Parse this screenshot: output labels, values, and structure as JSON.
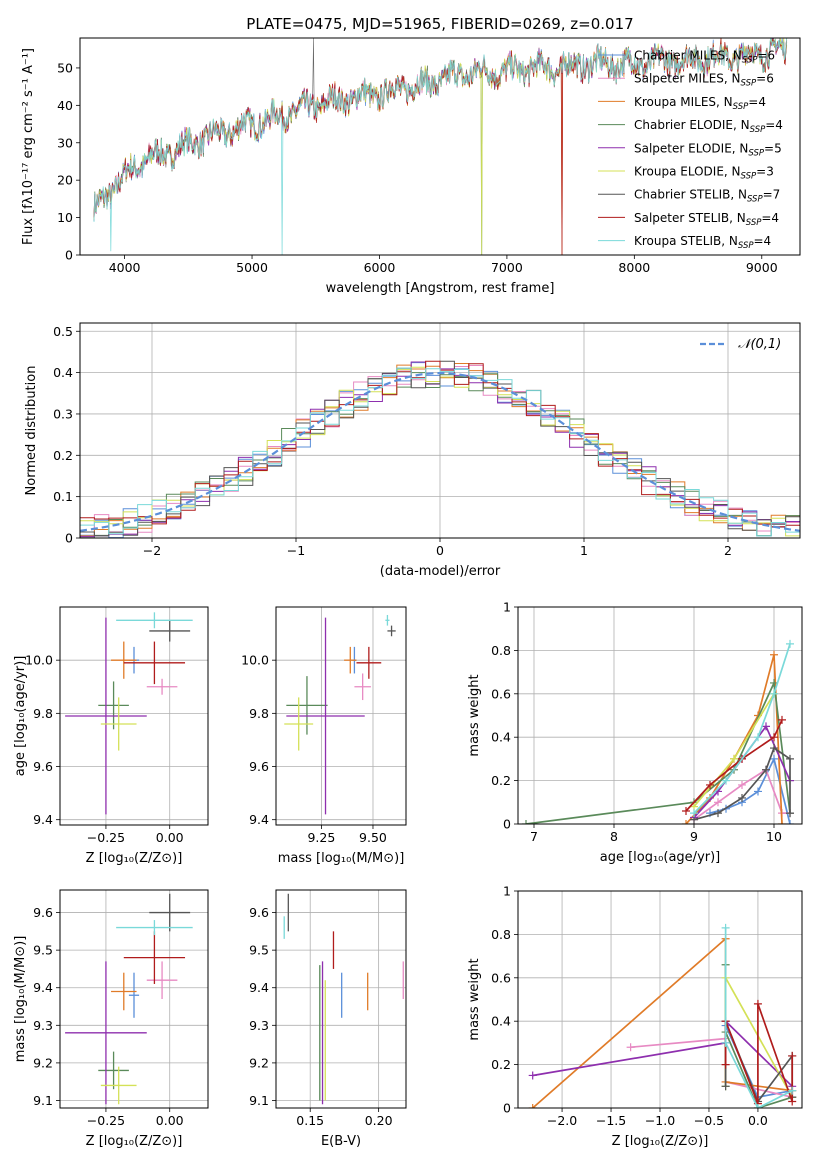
{
  "figure": {
    "title": "PLATE=0475, MJD=51965, FIBERID=0269, z=0.017"
  },
  "models": [
    {
      "name": "Chabrier MILES, N_SSP=6",
      "label_main": "Chabrier MILES, N",
      "label_sub": "SSP",
      "label_tail": "=6",
      "color": "#5b8fd9"
    },
    {
      "name": "Salpeter MILES, N_SSP=6",
      "label_main": "Salpeter MILES, N",
      "label_sub": "SSP",
      "label_tail": "=6",
      "color": "#e78ac3"
    },
    {
      "name": "Kroupa MILES, N_SSP=4",
      "label_main": "Kroupa MILES, N",
      "label_sub": "SSP",
      "label_tail": "=4",
      "color": "#e07b28"
    },
    {
      "name": "Chabrier ELODIE, N_SSP=4",
      "label_main": "Chabrier ELODIE, N",
      "label_sub": "SSP",
      "label_tail": "=4",
      "color": "#5a8a5a"
    },
    {
      "name": "Salpeter ELODIE, N_SSP=5",
      "label_main": "Salpeter ELODIE, N",
      "label_sub": "SSP",
      "label_tail": "=5",
      "color": "#8e2fae"
    },
    {
      "name": "Kroupa ELODIE, N_SSP=3",
      "label_main": "Kroupa ELODIE, N",
      "label_sub": "SSP",
      "label_tail": "=3",
      "color": "#d4e157"
    },
    {
      "name": "Chabrier STELIB, N_SSP=7",
      "label_main": "Chabrier STELIB, N",
      "label_sub": "SSP",
      "label_tail": "=7",
      "color": "#555555"
    },
    {
      "name": "Salpeter STELIB, N_SSP=4",
      "label_main": "Salpeter STELIB, N",
      "label_sub": "SSP",
      "label_tail": "=4",
      "color": "#b01c1c"
    },
    {
      "name": "Kroupa STELIB, N_SSP=4",
      "label_main": "Kroupa STELIB, N",
      "label_sub": "SSP",
      "label_tail": "=4",
      "color": "#7ad9d9"
    }
  ],
  "chart_data": [
    {
      "id": "spectrum",
      "type": "line",
      "xlabel": "wavelength [Angstrom, rest frame]",
      "ylabel": "Flux [fλ10⁻¹⁷ erg cm⁻² s⁻¹ A⁻¹]",
      "xlim": [
        3650,
        9300
      ],
      "ylim": [
        0,
        58
      ],
      "xticks": [
        4000,
        5000,
        6000,
        7000,
        8000,
        9000
      ],
      "yticks": [
        0,
        10,
        20,
        30,
        40,
        50
      ],
      "legend": "top-right",
      "continuum": {
        "x": [
          3750,
          3850,
          3950,
          4050,
          4200,
          4400,
          4600,
          4800,
          5000,
          5200,
          5400,
          5600,
          5800,
          6000,
          6200,
          6400,
          6600,
          6800,
          7000,
          7200,
          7400,
          7600,
          7800,
          8000,
          8200,
          8400,
          8600,
          8800,
          9000,
          9200
        ],
        "y": [
          11,
          16,
          19,
          23,
          26,
          28,
          31,
          33,
          35,
          37,
          39,
          41,
          42,
          43,
          45,
          46,
          48,
          49,
          49,
          50,
          50,
          51,
          51,
          51,
          52,
          52,
          53,
          53,
          54,
          55
        ]
      },
      "dips": [
        {
          "x": 3890,
          "y": 0
        },
        {
          "x": 5235,
          "y": 0
        },
        {
          "x": 6800,
          "y": 0
        },
        {
          "x": 7430,
          "y": 0
        }
      ]
    },
    {
      "id": "residual-histogram",
      "type": "bar",
      "xlabel": "(data-model)/error",
      "ylabel": "Normed distribution",
      "xlim": [
        -2.5,
        2.5
      ],
      "ylim": [
        0,
        0.52
      ],
      "xticks": [
        -2,
        -1,
        0,
        1,
        2
      ],
      "yticks": [
        0.0,
        0.1,
        0.2,
        0.3,
        0.4,
        0.5
      ],
      "grid": true,
      "legend_label": "𝒩(0,1)",
      "legend": "top-right",
      "bin_width": 0.1,
      "gaussian": {
        "mu": 0,
        "sigma": 1
      }
    },
    {
      "id": "age-vs-Z",
      "type": "scatter",
      "xlabel": "Z [log₁₀(Z/Z⊙)]",
      "ylabel": "age  [log₁₀(age/yr)]",
      "xlim": [
        -0.43,
        0.15
      ],
      "ylim": [
        9.38,
        10.2
      ],
      "xticks": [
        -0.25,
        0.0
      ],
      "xticklabels": [
        "−0.25",
        "0.00"
      ],
      "yticks": [
        9.4,
        9.6,
        9.8,
        10.0
      ],
      "yticklabels": [
        "9.4",
        "9.6",
        "9.8",
        "10.0"
      ],
      "points": [
        {
          "x": -0.14,
          "y": 10.0,
          "xerr": 0.02,
          "yerr": 0.05
        },
        {
          "x": -0.03,
          "y": 9.9,
          "xerr": 0.06,
          "yerr": 0.03
        },
        {
          "x": -0.18,
          "y": 10.0,
          "xerr": 0.05,
          "yerr": 0.07
        },
        {
          "x": -0.22,
          "y": 9.83,
          "xerr": 0.06,
          "yerr": 0.09
        },
        {
          "x": -0.25,
          "y": 9.79,
          "xerr": 0.16,
          "yerr": 0.37
        },
        {
          "x": -0.2,
          "y": 9.76,
          "xerr": 0.07,
          "yerr": 0.1
        },
        {
          "x": 0.0,
          "y": 10.11,
          "xerr": 0.08,
          "yerr": 0.04
        },
        {
          "x": -0.06,
          "y": 9.99,
          "xerr": 0.12,
          "yerr": 0.08
        },
        {
          "x": -0.06,
          "y": 10.15,
          "xerr": 0.15,
          "yerr": 0.03
        }
      ]
    },
    {
      "id": "age-vs-mass",
      "type": "scatter",
      "xlabel": "mass [log₁₀(M/M⊙)]",
      "ylabel": "",
      "xlim": [
        9.03,
        9.66
      ],
      "ylim": [
        9.38,
        10.2
      ],
      "xticks": [
        9.25,
        9.5
      ],
      "xticklabels": [
        "9.25",
        "9.50"
      ],
      "yticks": [
        9.4,
        9.6,
        9.8,
        10.0
      ],
      "yticklabels": [
        "9.4",
        "9.6",
        "9.8",
        "10.0"
      ],
      "points": [
        {
          "x": 9.41,
          "y": 10.0,
          "xerr": 0.01,
          "yerr": 0.05
        },
        {
          "x": 9.45,
          "y": 9.9,
          "xerr": 0.04,
          "yerr": 0.05
        },
        {
          "x": 9.39,
          "y": 10.0,
          "xerr": 0.03,
          "yerr": 0.05
        },
        {
          "x": 9.18,
          "y": 9.83,
          "xerr": 0.1,
          "yerr": 0.11
        },
        {
          "x": 9.27,
          "y": 9.79,
          "xerr": 0.19,
          "yerr": 0.37
        },
        {
          "x": 9.14,
          "y": 9.76,
          "xerr": 0.07,
          "yerr": 0.1
        },
        {
          "x": 9.59,
          "y": 10.11,
          "xerr": 0.02,
          "yerr": 0.02
        },
        {
          "x": 9.48,
          "y": 9.99,
          "xerr": 0.06,
          "yerr": 0.06
        },
        {
          "x": 9.57,
          "y": 10.15,
          "xerr": 0.01,
          "yerr": 0.02
        }
      ]
    },
    {
      "id": "massweight-vs-age",
      "type": "line",
      "xlabel": "age  [log₁₀(age/yr)]",
      "ylabel": "mass weight",
      "xlim": [
        6.8,
        10.35
      ],
      "ylim": [
        0,
        1
      ],
      "xticks": [
        7,
        8,
        9,
        10
      ],
      "yticks": [
        0.0,
        0.2,
        0.4,
        0.6,
        0.8,
        1.0
      ],
      "series": [
        {
          "x": [
            9.2,
            9.4,
            9.6,
            9.8,
            10.0,
            10.2
          ],
          "y": [
            0.05,
            0.07,
            0.1,
            0.15,
            0.3,
            0.0
          ]
        },
        {
          "x": [
            9.0,
            9.3,
            9.6,
            9.9,
            10.1,
            10.2
          ],
          "y": [
            0.02,
            0.1,
            0.18,
            0.25,
            0.05,
            0.05
          ]
        },
        {
          "x": [
            8.9,
            9.2,
            9.5,
            9.8,
            10.0,
            10.1
          ],
          "y": [
            0.0,
            0.12,
            0.3,
            0.5,
            0.78,
            0.0
          ]
        },
        {
          "x": [
            6.9,
            9.0,
            9.5,
            10.0,
            10.2
          ],
          "y": [
            0.0,
            0.1,
            0.25,
            0.65,
            0.05
          ]
        },
        {
          "x": [
            9.0,
            9.3,
            9.6,
            9.9,
            10.2
          ],
          "y": [
            0.03,
            0.15,
            0.3,
            0.45,
            0.2
          ]
        },
        {
          "x": [
            9.0,
            9.5,
            10.0
          ],
          "y": [
            0.08,
            0.3,
            0.6
          ]
        },
        {
          "x": [
            9.0,
            9.3,
            9.6,
            9.9,
            10.0,
            10.2,
            10.2
          ],
          "y": [
            0.02,
            0.05,
            0.12,
            0.25,
            0.35,
            0.3,
            0.05
          ]
        },
        {
          "x": [
            8.9,
            9.2,
            9.6,
            10.0,
            10.1
          ],
          "y": [
            0.06,
            0.18,
            0.3,
            0.4,
            0.48
          ]
        },
        {
          "x": [
            9.0,
            9.4,
            9.8,
            10.0,
            10.2
          ],
          "y": [
            0.05,
            0.2,
            0.4,
            0.6,
            0.83
          ]
        }
      ]
    },
    {
      "id": "mass-vs-Z",
      "type": "scatter",
      "xlabel": "Z [log₁₀(Z/Z⊙)]",
      "ylabel": "mass [log₁₀(M/M⊙)]",
      "xlim": [
        -0.43,
        0.15
      ],
      "ylim": [
        9.08,
        9.66
      ],
      "xticks": [
        -0.25,
        0.0
      ],
      "xticklabels": [
        "−0.25",
        "0.00"
      ],
      "yticks": [
        9.1,
        9.2,
        9.3,
        9.4,
        9.5,
        9.6
      ],
      "yticklabels": [
        "9.1",
        "9.2",
        "9.3",
        "9.4",
        "9.5",
        "9.6"
      ],
      "points": [
        {
          "x": -0.14,
          "y": 9.38,
          "xerr": 0.02,
          "yerr": 0.06
        },
        {
          "x": -0.03,
          "y": 9.42,
          "xerr": 0.06,
          "yerr": 0.05
        },
        {
          "x": -0.18,
          "y": 9.39,
          "xerr": 0.05,
          "yerr": 0.05
        },
        {
          "x": -0.22,
          "y": 9.18,
          "xerr": 0.06,
          "yerr": 0.05
        },
        {
          "x": -0.25,
          "y": 9.28,
          "xerr": 0.16,
          "yerr": 0.19
        },
        {
          "x": -0.2,
          "y": 9.14,
          "xerr": 0.07,
          "yerr": 0.05
        },
        {
          "x": 0.0,
          "y": 9.6,
          "xerr": 0.08,
          "yerr": 0.05
        },
        {
          "x": -0.06,
          "y": 9.48,
          "xerr": 0.12,
          "yerr": 0.07
        },
        {
          "x": -0.06,
          "y": 9.56,
          "xerr": 0.15,
          "yerr": 0.02
        }
      ]
    },
    {
      "id": "mass-vs-ebv",
      "type": "scatter",
      "xlabel": "E(B-V)",
      "ylabel": "",
      "xlim": [
        0.125,
        0.22
      ],
      "ylim": [
        9.08,
        9.66
      ],
      "xticks": [
        0.15,
        0.2
      ],
      "xticklabels": [
        "0.15",
        "0.20"
      ],
      "yticks": [
        9.1,
        9.2,
        9.3,
        9.4,
        9.5,
        9.6
      ],
      "yticklabels": [
        "9.1",
        "9.2",
        "9.3",
        "9.4",
        "9.5",
        "9.6"
      ],
      "points": [
        {
          "x": 0.173,
          "y": 9.38,
          "xerr": 0.0,
          "yerr": 0.06
        },
        {
          "x": 0.218,
          "y": 9.42,
          "xerr": 0.0,
          "yerr": 0.05
        },
        {
          "x": 0.192,
          "y": 9.39,
          "xerr": 0.0,
          "yerr": 0.05
        },
        {
          "x": 0.157,
          "y": 9.28,
          "xerr": 0.0,
          "yerr": 0.18
        },
        {
          "x": 0.159,
          "y": 9.28,
          "xerr": 0.0,
          "yerr": 0.19
        },
        {
          "x": 0.161,
          "y": 9.26,
          "xerr": 0.0,
          "yerr": 0.16
        },
        {
          "x": 0.134,
          "y": 9.6,
          "xerr": 0.0,
          "yerr": 0.05
        },
        {
          "x": 0.167,
          "y": 9.5,
          "xerr": 0.0,
          "yerr": 0.05
        },
        {
          "x": 0.131,
          "y": 9.56,
          "xerr": 0.0,
          "yerr": 0.03
        }
      ]
    },
    {
      "id": "massweight-vs-Z",
      "type": "line",
      "xlabel": "Z [log₁₀(Z/Z⊙)]",
      "ylabel": "mass weight",
      "xlim": [
        -2.45,
        0.45
      ],
      "ylim": [
        0,
        1
      ],
      "xticks": [
        -2.0,
        -1.5,
        -1.0,
        -0.5,
        0.0
      ],
      "xticklabels": [
        "−2.0",
        "−1.5",
        "−1.0",
        "−0.5",
        "0.0"
      ],
      "yticks": [
        0.0,
        0.2,
        0.4,
        0.6,
        0.8,
        1.0
      ],
      "series": [
        {
          "x": [
            -0.33,
            -0.33,
            0.0,
            0.35
          ],
          "y": [
            0.1,
            0.38,
            0.05,
            0.08
          ]
        },
        {
          "x": [
            -1.3,
            -0.33,
            -0.33,
            0.35
          ],
          "y": [
            0.28,
            0.32,
            0.12,
            0.05
          ]
        },
        {
          "x": [
            -2.3,
            -0.33,
            -0.33,
            0.35
          ],
          "y": [
            0.0,
            0.78,
            0.12,
            0.08
          ]
        },
        {
          "x": [
            -0.33,
            -0.33,
            0.0,
            0.35
          ],
          "y": [
            0.66,
            0.35,
            0.0,
            0.05
          ]
        },
        {
          "x": [
            -2.3,
            -0.33,
            -0.33,
            0.35
          ],
          "y": [
            0.15,
            0.3,
            0.4,
            0.1
          ]
        },
        {
          "x": [
            -0.33,
            -0.33,
            0.35
          ],
          "y": [
            0.1,
            0.6,
            0.05
          ]
        },
        {
          "x": [
            -0.33,
            -0.33,
            0.0,
            0.35,
            0.35
          ],
          "y": [
            0.1,
            0.4,
            0.03,
            0.24,
            0.05
          ]
        },
        {
          "x": [
            -0.33,
            -0.33,
            0.0,
            0.0,
            0.35,
            0.35
          ],
          "y": [
            0.2,
            0.4,
            0.02,
            0.48,
            0.03,
            0.24
          ]
        },
        {
          "x": [
            -0.33,
            -0.33,
            0.0,
            0.35
          ],
          "y": [
            0.83,
            0.3,
            0.0,
            0.08
          ]
        }
      ]
    }
  ]
}
